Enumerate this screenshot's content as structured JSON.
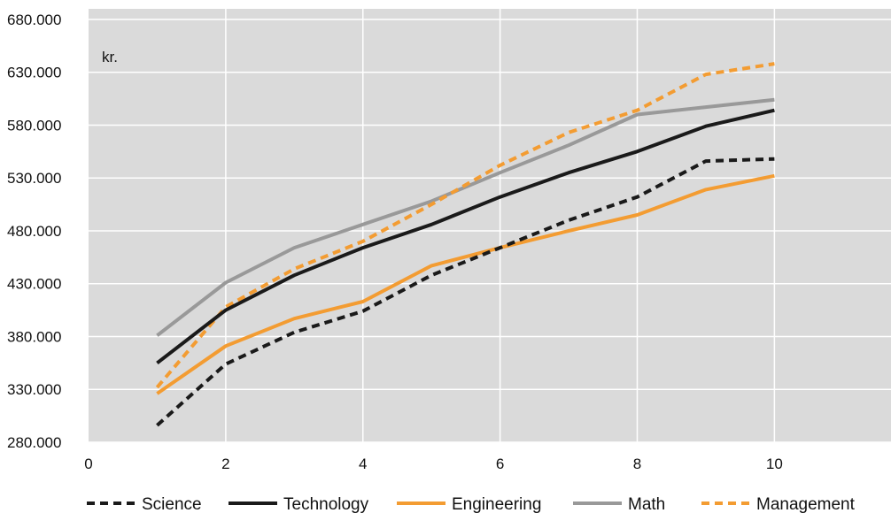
{
  "chart_data": {
    "type": "line",
    "title": "",
    "xlabel": "",
    "ylabel": "",
    "y_unit": "kr.",
    "xlim": [
      0,
      11.7
    ],
    "ylim": [
      280000,
      690000
    ],
    "x_ticks": [
      0,
      2,
      4,
      6,
      8,
      10
    ],
    "x_tick_labels": [
      "0",
      "2",
      "4",
      "6",
      "8",
      "10"
    ],
    "y_ticks": [
      280000,
      330000,
      380000,
      430000,
      480000,
      530000,
      580000,
      630000,
      680000
    ],
    "y_tick_labels": [
      "280.000",
      "330.000",
      "380.000",
      "430.000",
      "480.000",
      "530.000",
      "580.000",
      "630.000",
      "680.000"
    ],
    "grid": true,
    "background_color": "#dadada",
    "grid_color": "#ffffff",
    "legend_position": "bottom",
    "x": [
      1,
      2,
      3,
      4,
      5,
      6,
      7,
      8,
      9,
      10
    ],
    "series": [
      {
        "name": "Science",
        "color": "#1a1a1a",
        "dash": "dashed",
        "values": [
          296000,
          354000,
          384000,
          404000,
          438000,
          464000,
          490000,
          512000,
          546000,
          548000
        ]
      },
      {
        "name": "Technology",
        "color": "#1a1a1a",
        "dash": "solid",
        "values": [
          355000,
          405000,
          438000,
          464000,
          486000,
          512000,
          535000,
          555000,
          579000,
          594000
        ]
      },
      {
        "name": "Engineering",
        "color": "#f39c32",
        "dash": "solid",
        "values": [
          326000,
          371000,
          397000,
          413000,
          447000,
          464000,
          480000,
          495000,
          519000,
          532000
        ]
      },
      {
        "name": "Math",
        "color": "#999999",
        "dash": "solid",
        "values": [
          381000,
          431000,
          464000,
          486000,
          508000,
          535000,
          561000,
          590000,
          597000,
          604000
        ]
      },
      {
        "name": "Management",
        "color": "#f39c32",
        "dash": "dashed",
        "values": [
          332000,
          408000,
          444000,
          470000,
          505000,
          542000,
          573000,
          594000,
          628000,
          638000
        ]
      }
    ]
  }
}
